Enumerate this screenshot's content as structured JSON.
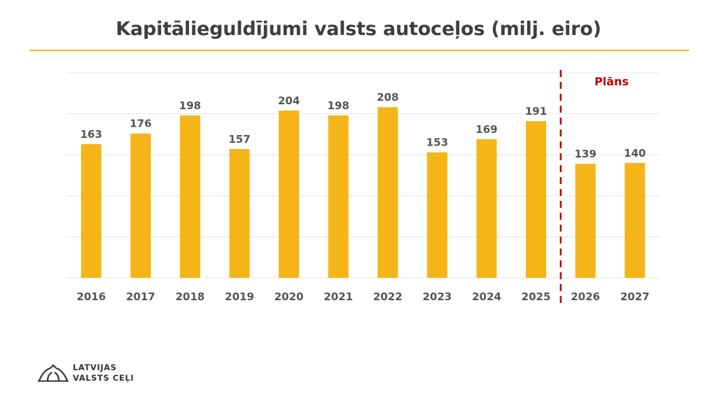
{
  "colors": {
    "bar": "#f5b418",
    "title": "#3f3f3f",
    "rule": "#f5b418",
    "grid": "#e6e6e6",
    "labels": "#555555",
    "plan": "#c00000"
  },
  "header": {
    "title": "Kapitālieguldījumi valsts autoceļos (milj. eiro)"
  },
  "chart_data": {
    "type": "bar",
    "title": "Kapitālieguldījumi valsts autoceļos (milj. eiro)",
    "categories": [
      "2016",
      "2017",
      "2018",
      "2019",
      "2020",
      "2021",
      "2022",
      "2023",
      "2024",
      "2025",
      "2026",
      "2027"
    ],
    "values": [
      163,
      176,
      198,
      157,
      204,
      198,
      208,
      153,
      169,
      191,
      139,
      140
    ],
    "ylim": [
      0,
      250
    ],
    "grid": true,
    "data_labels": true,
    "plan_marker": {
      "after_category": "2025",
      "label": "Plāns"
    }
  },
  "logo": {
    "icon": "road-bridge-logo-icon",
    "line1": "LATVIJAS",
    "line2": "VALSTS CEĻI"
  }
}
